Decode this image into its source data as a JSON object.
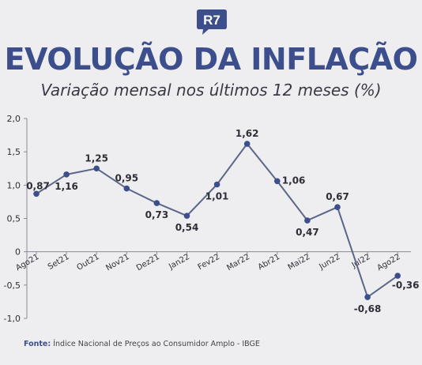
{
  "brand": {
    "logo_text": "R7"
  },
  "header": {
    "title": "EVOLUÇÃO DA INFLAÇÃO",
    "subtitle": "Variação mensal nos últimos 12 meses (%)"
  },
  "footer": {
    "source_label": "Fonte:",
    "source_text": "Índice Nacional de Preços ao Consumidor Amplo - IBGE"
  },
  "colors": {
    "title": "#3c4f8c",
    "line": "#5b6689",
    "marker": "#3c4f8c",
    "axis": "#8a8a96",
    "text": "#2e2e38"
  },
  "chart_data": {
    "type": "line",
    "categories": [
      "Ago21",
      "Set21",
      "Out21",
      "Nov21",
      "Dez21",
      "Jan22",
      "Fev22",
      "Mar22",
      "Abr21",
      "Mai22",
      "Jun22",
      "Jul22",
      "Ago22"
    ],
    "values": [
      0.87,
      1.16,
      1.25,
      0.95,
      0.73,
      0.54,
      1.01,
      1.62,
      1.06,
      0.47,
      0.67,
      -0.68,
      -0.36
    ],
    "value_labels": [
      "0,87",
      "1,16",
      "1,25",
      "0,95",
      "0,73",
      "0,54",
      "1,01",
      "1,62",
      "1,06",
      "0,47",
      "0,67",
      "-0,68",
      "-0,36"
    ],
    "y_ticks": [
      2.0,
      1.5,
      1.0,
      0.5,
      0,
      -0.5,
      -1.0
    ],
    "y_tick_labels": [
      "2,0",
      "1,5",
      "1,0",
      "0,5",
      "0",
      "-0,5",
      "-1,0"
    ],
    "ylim": [
      -1.0,
      2.0
    ],
    "grid": false
  }
}
